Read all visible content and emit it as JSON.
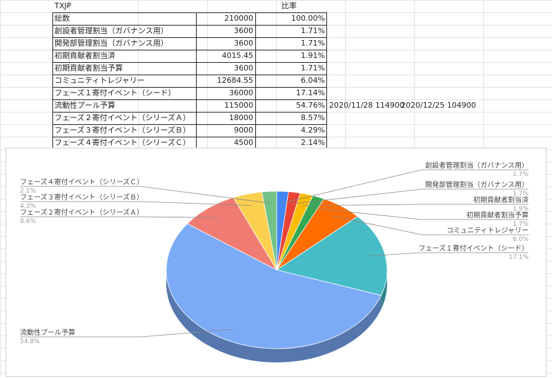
{
  "table": {
    "header": {
      "name": "TXJP",
      "ratio_label": "比率"
    },
    "rows": [
      {
        "name": "総数",
        "value": "210000",
        "ratio": "100.00%"
      },
      {
        "name": "創設者管理割当（ガバナンス用）",
        "value": "3600",
        "ratio": "1.71%"
      },
      {
        "name": "開発部管理割当（ガバナンス用）",
        "value": "3600",
        "ratio": "1.71%"
      },
      {
        "name": "初期貢献者割当済",
        "value": "4015.45",
        "ratio": "1.91%"
      },
      {
        "name": "初期貢献者割当予算",
        "value": "3600",
        "ratio": "1.71%"
      },
      {
        "name": "コミュニティトレジャリー",
        "value": "12684.55",
        "ratio": "6.04%"
      },
      {
        "name": "フェーズ１寄付イベント（シード）",
        "value": "36000",
        "ratio": "17.14%"
      },
      {
        "name": "流動性プール予算",
        "value": "115000",
        "ratio": "54.76%",
        "note1": "2020/11/28 114900",
        "note2": "2020/12/25 104900"
      },
      {
        "name": "フェーズ２寄付イベント（シリーズＡ）",
        "value": "18000",
        "ratio": "8.57%"
      },
      {
        "name": "フェーズ３寄付イベント（シリーズＢ）",
        "value": "9000",
        "ratio": "4.29%"
      },
      {
        "name": "フェーズ４寄付イベント（シリーズＣ）",
        "value": "4500",
        "ratio": "2.14%"
      }
    ]
  },
  "chart_data": {
    "type": "pie",
    "style": "3d",
    "slices": [
      {
        "label": "創設者管理割当（ガバナンス用）",
        "value": 3600,
        "pct_label": "1.7%",
        "color": "#4285f4"
      },
      {
        "label": "開発部管理割当（ガバナンス用）",
        "value": 3600,
        "pct_label": "1.7%",
        "color": "#ea4335"
      },
      {
        "label": "初期貢献者割当済",
        "value": 4015.45,
        "pct_label": "1.9%",
        "color": "#fbbc04"
      },
      {
        "label": "初期貢献者割当予算",
        "value": 3600,
        "pct_label": "1.7%",
        "color": "#34a853"
      },
      {
        "label": "コミュニティトレジャリー",
        "value": 12684.55,
        "pct_label": "6.0%",
        "color": "#ff6d01"
      },
      {
        "label": "フェーズ１寄付イベント（シード）",
        "value": 36000,
        "pct_label": "17.1%",
        "color": "#46bdc6"
      },
      {
        "label": "流動性プール予算",
        "value": 115000,
        "pct_label": "54.8%",
        "color": "#7baaf7"
      },
      {
        "label": "フェーズ２寄付イベント（シリーズＡ）",
        "value": 18000,
        "pct_label": "8.6%",
        "color": "#f07b72"
      },
      {
        "label": "フェーズ３寄付イベント（シリーズＢ）",
        "value": 9000,
        "pct_label": "4.3%",
        "color": "#fcd04f"
      },
      {
        "label": "フェーズ４寄付イベント（シリーズＣ）",
        "value": 4500,
        "pct_label": "2.1%",
        "color": "#71c287"
      }
    ],
    "legend": "none"
  }
}
